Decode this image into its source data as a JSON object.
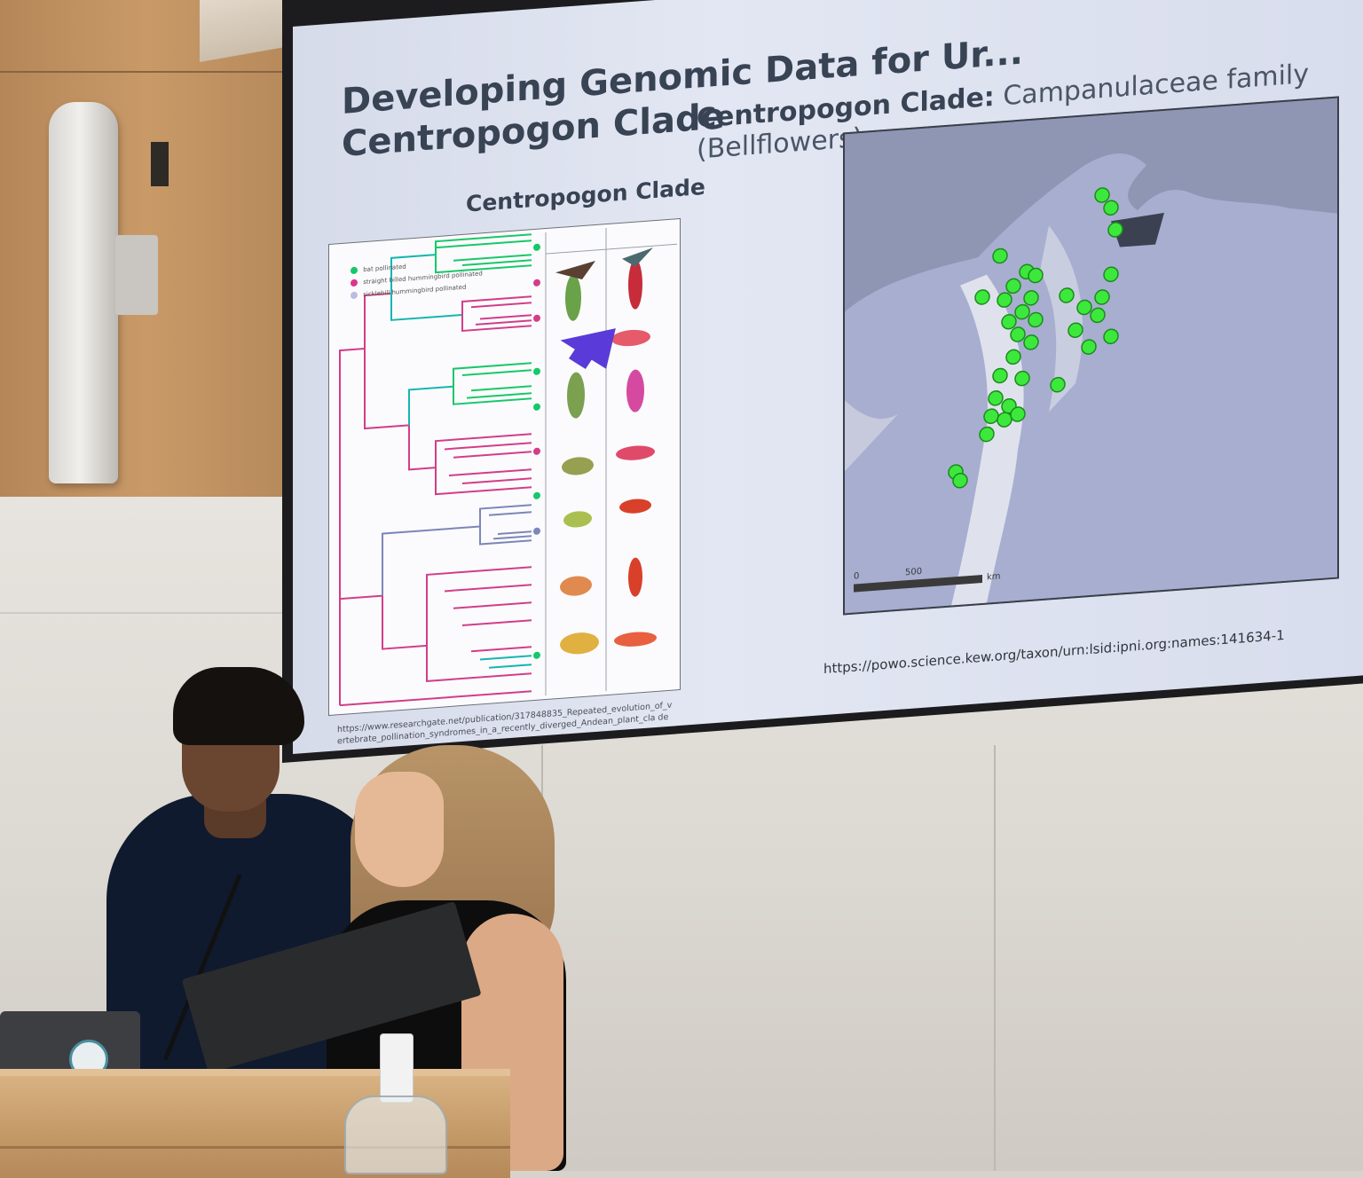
{
  "slide": {
    "title_line1": "Developing Genomic Data for Ur...",
    "title_line2": "Centropogon Clade",
    "subtitle_bold": "Centropogon Clade:",
    "subtitle_rest": "Campanulaceae family (Bellflowers)",
    "tree_heading": "Centropogon Clade",
    "legend": [
      {
        "label": "bat pollinated",
        "color": "#16c86a"
      },
      {
        "label": "straight billed hummingbird pollinated",
        "color": "#e0338f"
      },
      {
        "label": "sicklebill hummingbird pollinated",
        "color": "#b9bedd"
      }
    ],
    "map_scale_zero": "0",
    "map_scale_value": "500",
    "map_scale_unit": "km",
    "citation_left": "https://www.researchgate.net/publication/317848835_Repeated_evolution_of_vertebrate_pollination_syndromes_in_a_recently_diverged_Andean_plant_cla de",
    "citation_right": "https://powo.science.kew.org/taxon/urn:lsid:ipni.org:names:141634-1"
  },
  "colors": {
    "accent_bat": "#16c86a",
    "accent_hummingbird": "#e0338f",
    "arrow": "#5a3ad8",
    "map_points": "#3ce83c"
  }
}
